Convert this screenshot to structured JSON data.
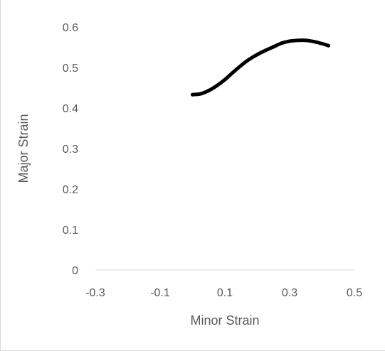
{
  "chart_data": {
    "type": "scatter",
    "title": "",
    "xlabel": "Minor Strain",
    "ylabel": "Major Strain",
    "xlim": [
      -0.3,
      0.5
    ],
    "ylim": [
      0,
      0.6
    ],
    "x_ticks": [
      "-0.3",
      "-0.1",
      "0.1",
      "0.3",
      "0.5"
    ],
    "y_ticks": [
      "0",
      "0.1",
      "0.2",
      "0.3",
      "0.4",
      "0.5",
      "0.6"
    ],
    "grid": false,
    "legend": "none",
    "series": [
      {
        "color": "#000000",
        "points": [
          [
            0.0,
            0.433
          ],
          [
            0.025,
            0.435
          ],
          [
            0.05,
            0.443
          ],
          [
            0.075,
            0.455
          ],
          [
            0.1,
            0.47
          ],
          [
            0.125,
            0.488
          ],
          [
            0.15,
            0.505
          ],
          [
            0.175,
            0.52
          ],
          [
            0.2,
            0.532
          ],
          [
            0.225,
            0.542
          ],
          [
            0.25,
            0.551
          ],
          [
            0.275,
            0.56
          ],
          [
            0.3,
            0.565
          ],
          [
            0.325,
            0.567
          ],
          [
            0.35,
            0.567
          ],
          [
            0.375,
            0.564
          ],
          [
            0.4,
            0.559
          ],
          [
            0.42,
            0.554
          ]
        ]
      }
    ]
  }
}
